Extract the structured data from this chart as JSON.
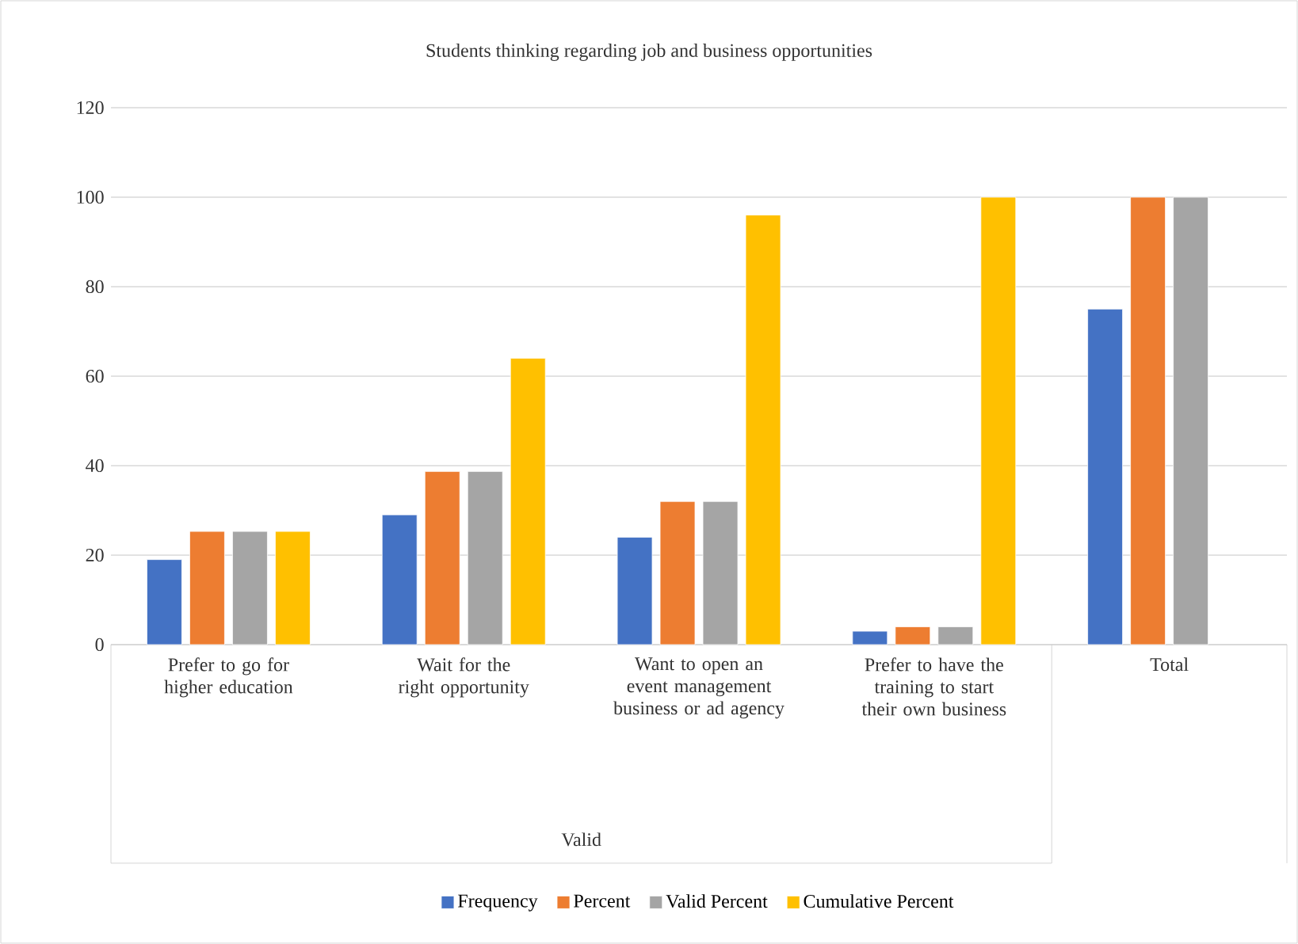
{
  "chart_data": {
    "type": "bar",
    "title": "Students thinking regarding job and business opportunities",
    "categories": [
      "Prefer to go for higher education",
      "Wait for the right opportunity",
      "Want to open an event management business or ad agency",
      "Prefer to have the training to start their own business",
      "Total"
    ],
    "series": [
      {
        "name": "Frequency",
        "color": "#4472c4",
        "values": [
          19,
          29,
          24,
          3,
          75
        ]
      },
      {
        "name": "Percent",
        "color": "#ed7d31",
        "values": [
          25.3,
          38.7,
          32,
          4,
          100
        ]
      },
      {
        "name": "Valid Percent",
        "color": "#a5a5a5",
        "values": [
          25.3,
          38.7,
          32,
          4,
          100
        ]
      },
      {
        "name": "Cumulative Percent",
        "color": "#ffc000",
        "values": [
          25.3,
          64,
          96,
          100,
          null
        ]
      }
    ],
    "ylim": [
      0,
      120
    ],
    "yticks": [
      0,
      20,
      40,
      60,
      80,
      100,
      120
    ],
    "grid": "y",
    "legend": "bottom",
    "annotations": [
      "Valid"
    ]
  }
}
